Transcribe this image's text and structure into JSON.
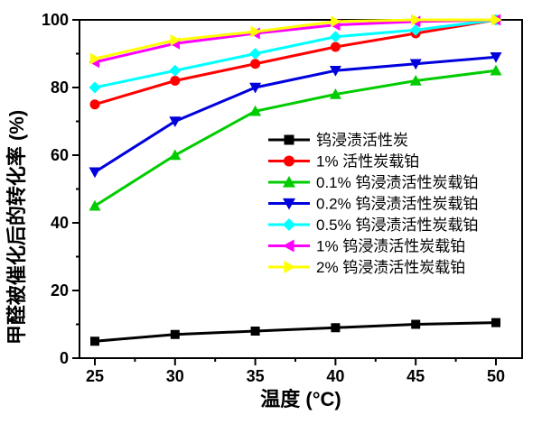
{
  "figure": {
    "background": "#ffffff",
    "axis_color": "#000000"
  },
  "chart_data": {
    "type": "line",
    "title": "",
    "xlabel": "温度 (°C)",
    "ylabel": "甲醛被催化后的转化率 (%)",
    "x": [
      25,
      30,
      35,
      40,
      45,
      50
    ],
    "x_tick_labels": [
      "25",
      "30",
      "35",
      "40",
      "45",
      "50"
    ],
    "x_minor_ticks": [
      27.5,
      32.5,
      37.5,
      42.5,
      47.5
    ],
    "y_ticks": [
      0,
      20,
      40,
      60,
      80,
      100
    ],
    "y_tick_labels": [
      "0",
      "20",
      "40",
      "60",
      "80",
      "100"
    ],
    "y_minor_ticks": [
      10,
      30,
      50,
      70,
      90
    ],
    "xlim": [
      24,
      51.6
    ],
    "ylim": [
      0,
      100
    ],
    "grid": false,
    "legend_position": "inside-center-right",
    "series": [
      {
        "name": "钨浸渍活性炭",
        "color": "#000000",
        "marker": "square",
        "values": [
          5,
          7,
          8,
          9,
          10,
          10.5
        ]
      },
      {
        "name": "1% 活性炭载铂",
        "color": "#ff0000",
        "marker": "circle",
        "values": [
          75,
          82,
          87,
          92,
          96,
          100
        ]
      },
      {
        "name": "0.1% 钨浸渍活性炭载铂",
        "color": "#00cc00",
        "marker": "triangle-up",
        "values": [
          45,
          60,
          73,
          78,
          82,
          85
        ]
      },
      {
        "name": "0.2% 钨浸渍活性炭载铂",
        "color": "#0000dd",
        "marker": "triangle-down",
        "values": [
          55,
          70,
          80,
          85,
          87,
          89
        ]
      },
      {
        "name": "0.5% 钨浸渍活性炭载铂",
        "color": "#00ffff",
        "marker": "diamond",
        "values": [
          80,
          85,
          90,
          95,
          97,
          100
        ]
      },
      {
        "name": "1% 钨浸渍活性炭载铂",
        "color": "#ff00ff",
        "marker": "triangle-left",
        "values": [
          87.5,
          93,
          96,
          98.5,
          99.5,
          100
        ]
      },
      {
        "name": "2% 钨浸渍活性炭载铂",
        "color": "#ffff00",
        "marker": "triangle-right",
        "values": [
          88.5,
          94,
          96.5,
          99.5,
          100,
          100
        ]
      }
    ]
  }
}
